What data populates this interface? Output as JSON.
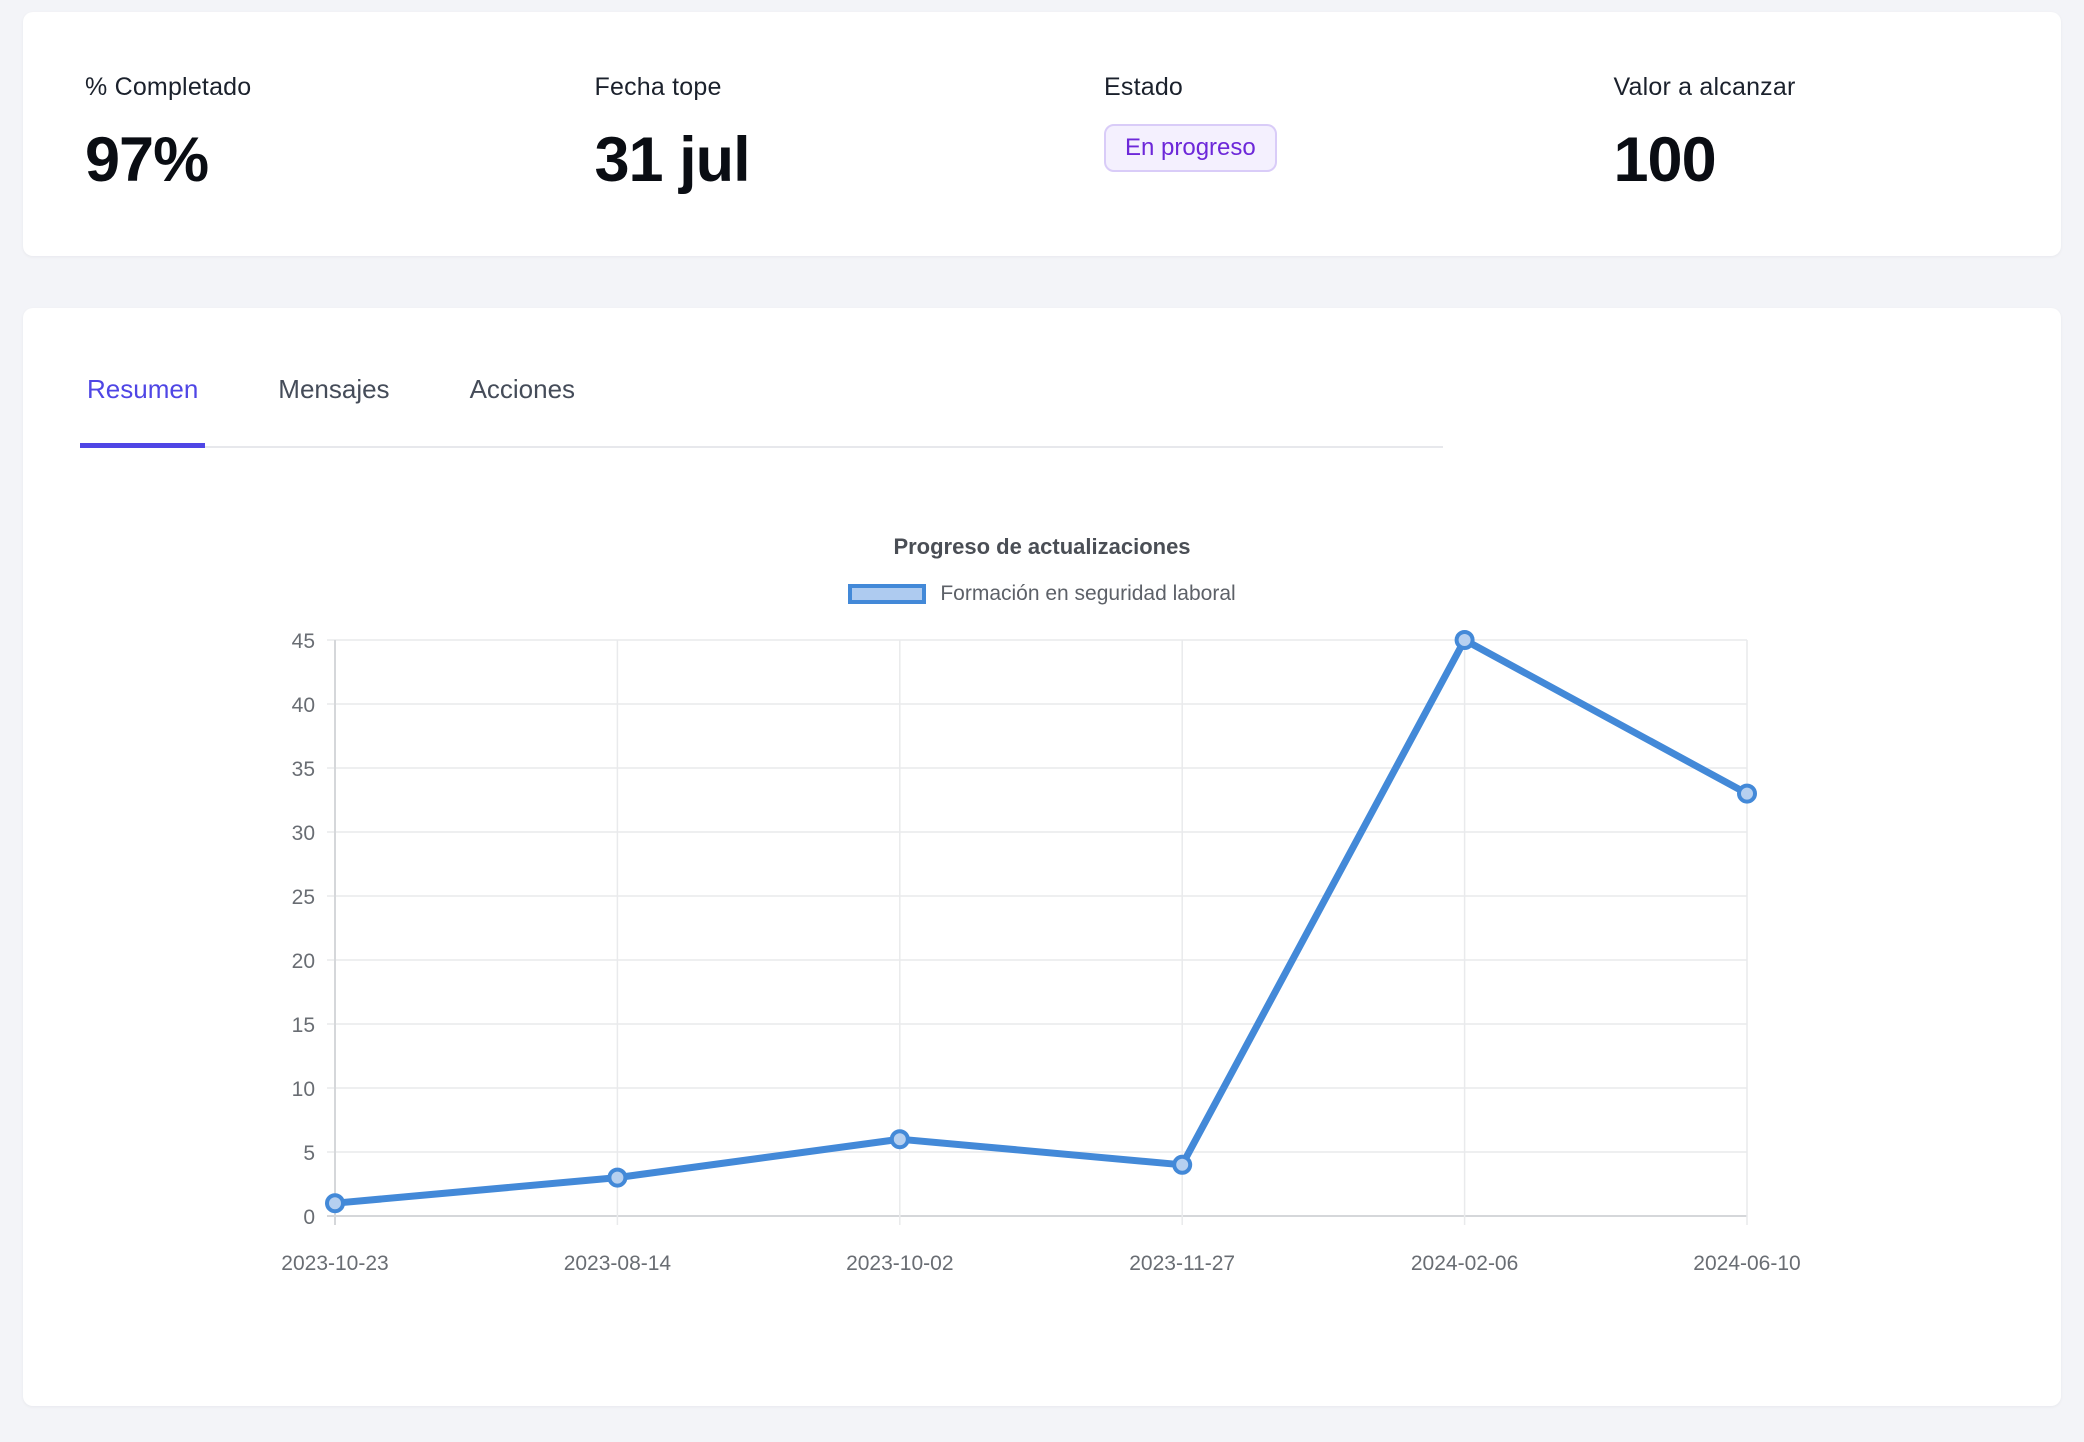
{
  "stats_card": {
    "items": [
      {
        "label": "% Completado",
        "value": "97%"
      },
      {
        "label": "Fecha tope",
        "value": "31 jul"
      },
      {
        "label": "Estado",
        "value": "En progreso",
        "style": "badge"
      },
      {
        "label": "Valor a alcanzar",
        "value": "100"
      }
    ]
  },
  "main_card": {
    "tabs": [
      {
        "label": "Resumen",
        "active": true
      },
      {
        "label": "Mensajes",
        "active": false
      },
      {
        "label": "Acciones",
        "active": false
      }
    ]
  },
  "chart_data": {
    "type": "line",
    "title": "Progreso de actualizaciones",
    "categories": [
      "2023-10-23",
      "2023-08-14",
      "2023-10-02",
      "2023-11-27",
      "2024-02-06",
      "2024-06-10"
    ],
    "series": [
      {
        "name": "Formación en seguridad laboral",
        "values": [
          1,
          3,
          6,
          4,
          45,
          33
        ]
      }
    ],
    "xlabel": "",
    "ylabel": "",
    "ylim": [
      0,
      45
    ],
    "ytick_step": 5,
    "grid": true,
    "legend_position": "top",
    "line_color": "#4389d8",
    "point_fill": "#b6d0f0",
    "legend_swatch_fill": "#aecbf0",
    "grid_color": "#e9eaec",
    "axis_color": "#d5d7da"
  },
  "colors": {
    "page_background": "#f3f4f8",
    "accent": "#4f46e5",
    "badge_text": "#6d28d9",
    "badge_background": "#f4f0fe",
    "badge_border": "#d9ccf8"
  }
}
